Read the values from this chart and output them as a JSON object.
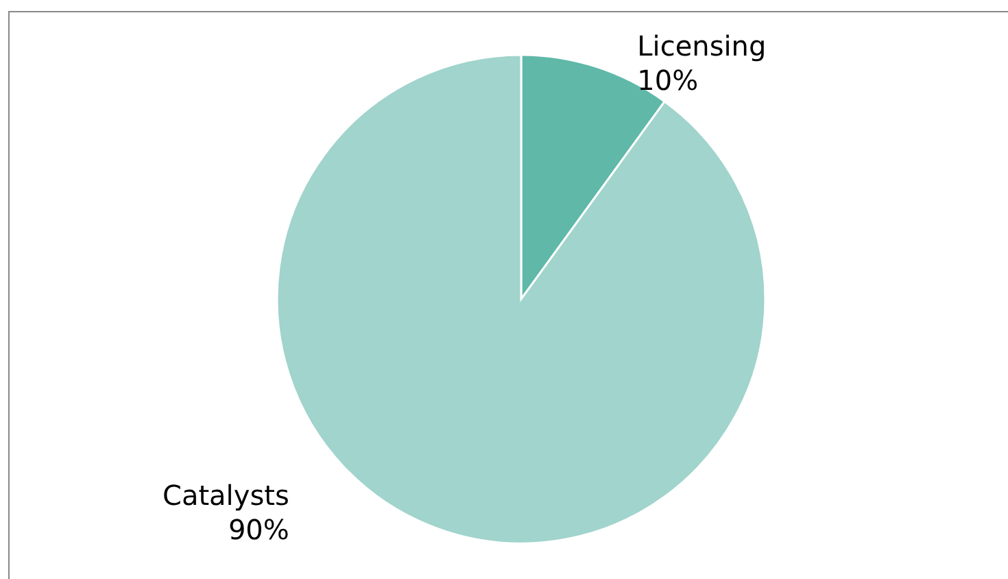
{
  "chart_data": {
    "type": "pie",
    "categories": [
      "Licensing",
      "Catalysts"
    ],
    "values": [
      10,
      90
    ],
    "colors": [
      "#5fb8a8",
      "#a0d4cc"
    ],
    "value_labels": [
      "10%",
      "90%"
    ]
  }
}
